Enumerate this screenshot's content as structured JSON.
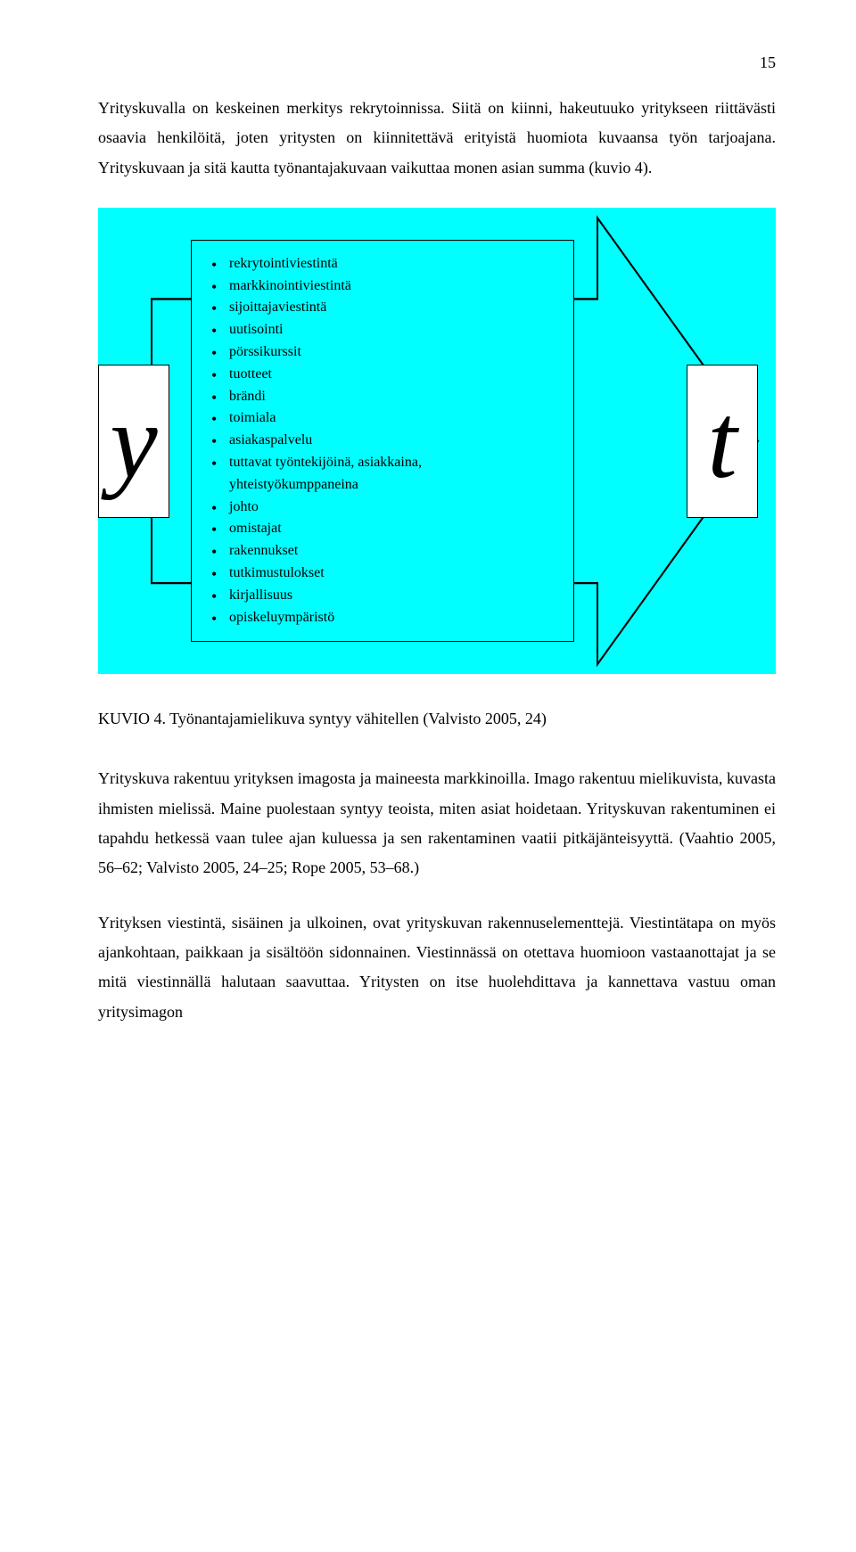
{
  "page_number": "15",
  "para1": "Yrityskuvalla on keskeinen merkitys rekrytoinnissa. Siitä on kiinni, hakeutuuko yritykseen riittävästi osaavia henkilöitä, joten yritysten on kiinnitettävä erityistä huomiota kuvaansa työn tarjoajana. Yrityskuvaan ja sitä kautta työnantajakuvaan vaikuttaa monen asian summa (kuvio 4).",
  "diagram": {
    "background_color": "#00ffff",
    "arrow_fill": "#00ffff",
    "arrow_stroke": "#000000",
    "box_stroke": "#000000",
    "box_fill": "#ffffff",
    "left_letter": "y",
    "right_letter": "t",
    "letter_color": "#000000",
    "letter_style": "italic-serif",
    "bullets": [
      "rekrytointiviestintä",
      "markkinointiviestintä",
      "sijoittajaviestintä",
      "uutisointi",
      "pörssikurssit",
      "tuotteet",
      "brändi",
      "toimiala",
      "asiakaspalvelu",
      "tuttavat työntekijöinä, asiakkaina, yhteistyökumppaneina",
      "johto",
      "omistajat",
      "rakennukset",
      "tutkimustulokset",
      "kirjallisuus",
      "opiskeluympäristö"
    ]
  },
  "caption": "KUVIO 4. Työnantajamielikuva syntyy vähitellen (Valvisto 2005, 24)",
  "para2": "Yrityskuva rakentuu yrityksen imagosta ja maineesta markkinoilla. Imago rakentuu mielikuvista, kuvasta ihmisten mielissä. Maine puolestaan syntyy teoista, miten asiat hoidetaan. Yrityskuvan rakentuminen ei tapahdu hetkessä vaan tulee ajan kuluessa ja sen rakentaminen vaatii pitkäjänteisyyttä. (Vaahtio 2005, 56–62; Valvisto 2005, 24–25; Rope 2005, 53–68.)",
  "para3": "Yrityksen viestintä, sisäinen ja ulkoinen, ovat yrityskuvan rakennuselementtejä. Viestintätapa on myös ajankohtaan, paikkaan ja sisältöön sidonnainen. Viestinnässä on otettava huomioon vastaanottajat ja se mitä viestinnällä halutaan saavuttaa. Yritysten on itse huolehdittava ja kannettava vastuu oman yritysimagon"
}
